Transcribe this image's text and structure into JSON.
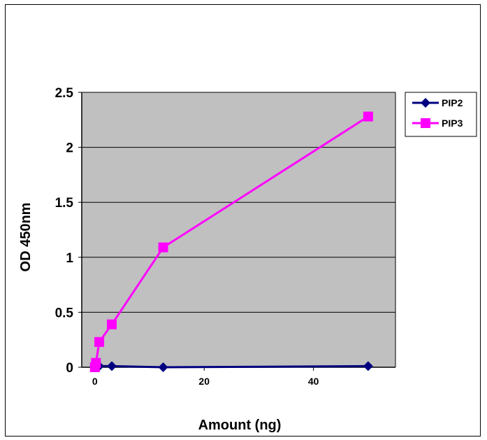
{
  "chart_data": {
    "type": "line",
    "title": "",
    "xlabel": "Amount (ng)",
    "ylabel": "OD 450nm",
    "xlim": [
      -2.4,
      55
    ],
    "ylim": [
      0,
      2.5
    ],
    "x_ticks": [
      0,
      20,
      40
    ],
    "y_ticks": [
      0,
      0.5,
      1,
      1.5,
      2,
      2.5
    ],
    "y_tick_labels": [
      "0",
      "0.5",
      "1",
      "1.5",
      "2",
      "2.5"
    ],
    "x_tick_labels": [
      "0",
      "20",
      "40"
    ],
    "grid": "horizontal",
    "plot_background": "#c0c0c0",
    "legend": "right",
    "series": [
      {
        "name": "PIP2",
        "color": "#000080",
        "marker": "diamond",
        "x": [
          0,
          0.2,
          0.8,
          3.1,
          12.5,
          50
        ],
        "y": [
          0,
          0,
          0.01,
          0.01,
          0,
          0.01
        ]
      },
      {
        "name": "PIP3",
        "color": "#ff00ff",
        "marker": "square",
        "x": [
          0,
          0.2,
          0.8,
          3.1,
          12.5,
          50
        ],
        "y": [
          0,
          0.04,
          0.23,
          0.39,
          1.09,
          2.28
        ]
      }
    ]
  }
}
